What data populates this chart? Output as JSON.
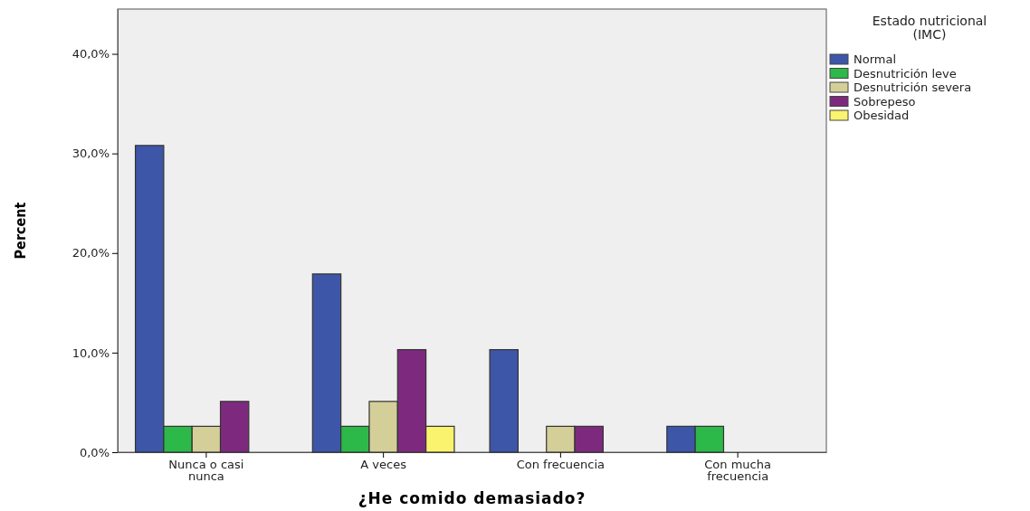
{
  "chart_data": {
    "type": "bar",
    "xlabel": "¿He comido demasiado?",
    "ylabel": "Percent",
    "legend_title": "Estado nutricional (IMC)",
    "legend": "top right",
    "categories": [
      "Nunca o casi nunca",
      "A veces",
      "Con frecuencia",
      "Con mucha frecuencia"
    ],
    "series": [
      {
        "name": "Normal",
        "color": "#3d56a8",
        "values": [
          30.8,
          17.9,
          10.3,
          2.6
        ]
      },
      {
        "name": "Desnutrición leve",
        "color": "#2db84a",
        "values": [
          2.6,
          2.6,
          0,
          2.6
        ]
      },
      {
        "name": "Desnutrición severa",
        "color": "#d4cf98",
        "values": [
          2.6,
          5.1,
          2.6,
          0
        ]
      },
      {
        "name": "Sobrepeso",
        "color": "#7d2a7e",
        "values": [
          5.1,
          10.3,
          2.6,
          0
        ]
      },
      {
        "name": "Obesidad",
        "color": "#faf36e",
        "values": [
          0,
          2.6,
          0,
          0
        ]
      }
    ],
    "ylim": [
      0,
      44.5
    ],
    "yticks": [
      {
        "value": 0,
        "label": "0,0%"
      },
      {
        "value": 10,
        "label": "10,0%"
      },
      {
        "value": 20,
        "label": "20,0%"
      },
      {
        "value": 30,
        "label": "30,0%"
      },
      {
        "value": 40,
        "label": "40,0%"
      }
    ]
  }
}
